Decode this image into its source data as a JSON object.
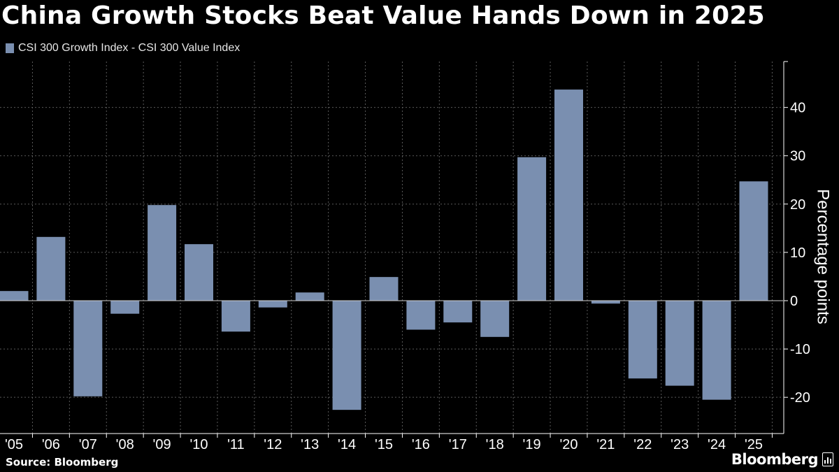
{
  "title": "China Growth Stocks Beat Value Hands Down in 2025",
  "source": "Source: Bloomberg",
  "brand": "Bloomberg",
  "colors": {
    "bar": "#7a8fb0",
    "grid": "#5a5a5a",
    "background": "#000000"
  },
  "chart_data": {
    "type": "bar",
    "title": "China Growth Stocks Beat Value Hands Down in 2025",
    "series": [
      {
        "name": "CSI 300 Growth Index - CSI 300 Value Index",
        "values": [
          2.0,
          13.2,
          -19.8,
          -2.7,
          19.8,
          11.7,
          -6.4,
          -1.4,
          1.7,
          -22.6,
          4.9,
          -6.0,
          -4.5,
          -7.5,
          29.7,
          43.7,
          -0.6,
          -16.1,
          -17.6,
          -20.5,
          24.7
        ]
      }
    ],
    "categories": [
      "'05",
      "'06",
      "'07",
      "'08",
      "'09",
      "'10",
      "'11",
      "'12",
      "'13",
      "'14",
      "'15",
      "'16",
      "'17",
      "'18",
      "'19",
      "'20",
      "'21",
      "'22",
      "'23",
      "'24",
      "'25"
    ],
    "ylabel": "Percentage points",
    "xlabel": "",
    "ylim": [
      -27.5,
      49.5
    ],
    "yticks": [
      -20,
      -10,
      0,
      10,
      20,
      30,
      40
    ],
    "ytick_labels": [
      "-20",
      "-10",
      "0",
      "10",
      "20",
      "30",
      "40"
    ],
    "grid": true,
    "legend": "top-left"
  }
}
